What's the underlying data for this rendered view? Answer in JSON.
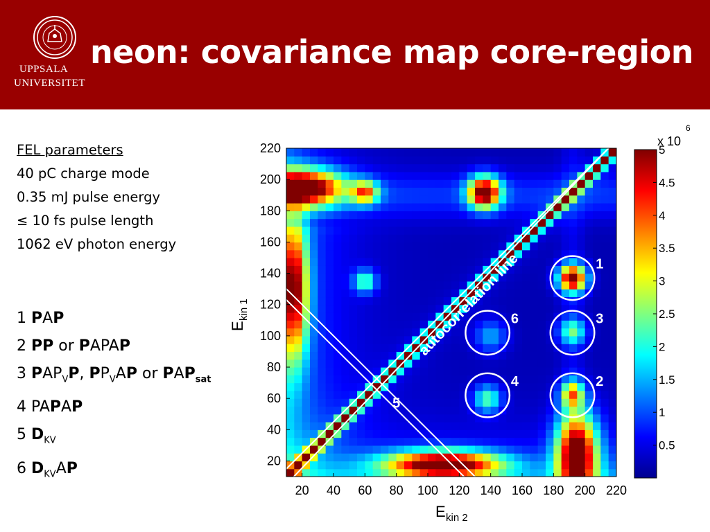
{
  "header": {
    "title": "neon: covariance map core-region",
    "logo_line1": "UPPSALA",
    "logo_line2": "UNIVERSITET",
    "background": "#990000"
  },
  "fel": {
    "heading": "FEL parameters",
    "lines": [
      "40 pC charge mode",
      "0.35 mJ pulse energy",
      "≤ 10 fs pulse length",
      "1062 eV photon energy"
    ]
  },
  "legend": [
    {
      "num": "1",
      "parts": [
        [
          "P",
          true
        ],
        [
          "A",
          false
        ],
        [
          "P",
          true
        ]
      ]
    },
    {
      "num": "2",
      "parts": [
        [
          "PP",
          true
        ],
        [
          " or ",
          false
        ],
        [
          "P",
          true
        ],
        [
          "APA",
          false
        ],
        [
          "P",
          true
        ]
      ]
    },
    {
      "num": "3",
      "parts": [
        [
          "P",
          true
        ],
        [
          "AP",
          false
        ],
        [
          "V",
          false,
          "sub"
        ],
        [
          "P",
          true
        ],
        [
          ", ",
          false
        ],
        [
          "P",
          true
        ],
        [
          "P",
          false
        ],
        [
          "V",
          false,
          "sub"
        ],
        [
          "A",
          false
        ],
        [
          "P",
          true
        ],
        [
          " or ",
          false
        ],
        [
          "P",
          true
        ],
        [
          "A",
          false
        ],
        [
          "P",
          true
        ],
        [
          "sat",
          true,
          "sub"
        ]
      ]
    },
    {
      "num": "4",
      "parts": [
        [
          "PA",
          false
        ],
        [
          "P",
          true
        ],
        [
          "A",
          false
        ],
        [
          "P",
          true
        ]
      ]
    },
    {
      "num": "5",
      "parts": [
        [
          "D",
          true
        ],
        [
          "KV",
          false,
          "sub"
        ]
      ]
    },
    {
      "num": "6",
      "parts": [
        [
          "D",
          true
        ],
        [
          "KV",
          false,
          "sub"
        ],
        [
          "A",
          false
        ],
        [
          "P",
          true
        ]
      ]
    }
  ],
  "chart_data": {
    "type": "heatmap",
    "title": "",
    "xlabel": "E",
    "xlabel_sub": "kin 2",
    "ylabel": "E",
    "ylabel_sub": "kin 1",
    "xlim": [
      10,
      220
    ],
    "ylim": [
      10,
      220
    ],
    "x_ticks": [
      20,
      40,
      60,
      80,
      100,
      120,
      140,
      160,
      180,
      200,
      220
    ],
    "y_ticks": [
      20,
      40,
      60,
      80,
      100,
      120,
      140,
      160,
      180,
      200,
      220
    ],
    "colorbar": {
      "range": [
        0,
        5
      ],
      "multiplier": "x 10",
      "exponent": "6",
      "ticks": [
        0.5,
        1,
        1.5,
        2,
        2.5,
        3,
        3.5,
        4,
        4.5,
        5
      ],
      "tick_labels": [
        "0.5",
        "1",
        "1.5",
        "2",
        "2.5",
        "3",
        "3.5",
        "4",
        "4.5",
        "5"
      ]
    },
    "features": [
      {
        "x": 20,
        "y": 195,
        "value": 5,
        "sx": 18,
        "sy": 8
      },
      {
        "x": 60,
        "y": 192,
        "value": 3,
        "sx": 6,
        "sy": 5
      },
      {
        "x": 136,
        "y": 192,
        "value": 5,
        "sx": 7,
        "sy": 7
      },
      {
        "x": 192,
        "y": 137,
        "value": 5,
        "sx": 6,
        "sy": 6
      },
      {
        "x": 192,
        "y": 103,
        "value": 2,
        "sx": 6,
        "sy": 6
      },
      {
        "x": 192,
        "y": 63,
        "value": 3,
        "sx": 5,
        "sy": 6
      },
      {
        "x": 195,
        "y": 25,
        "value": 5,
        "sx": 9,
        "sy": 18
      },
      {
        "x": 138,
        "y": 60,
        "value": 2,
        "sx": 6,
        "sy": 6
      },
      {
        "x": 140,
        "y": 100,
        "value": 1.2,
        "sx": 7,
        "sy": 7
      },
      {
        "x": 60,
        "y": 135,
        "value": 2,
        "sx": 5,
        "sy": 5
      },
      {
        "x": 15,
        "y": 130,
        "value": 4,
        "sx": 6,
        "sy": 30
      },
      {
        "x": 110,
        "y": 18,
        "value": 5,
        "sx": 25,
        "sy": 6
      }
    ],
    "autocorrelation_label": "autocorrelation line",
    "line5_intercepts": [
      133,
      140
    ],
    "circles": [
      {
        "label": "1",
        "x": 192,
        "y": 137,
        "r": 14
      },
      {
        "label": "3",
        "x": 192,
        "y": 102,
        "r": 14
      },
      {
        "label": "2",
        "x": 192,
        "y": 62,
        "r": 14
      },
      {
        "label": "6",
        "x": 138,
        "y": 102,
        "r": 14
      },
      {
        "label": "4",
        "x": 138,
        "y": 62,
        "r": 14
      }
    ],
    "line5_label": "5"
  }
}
